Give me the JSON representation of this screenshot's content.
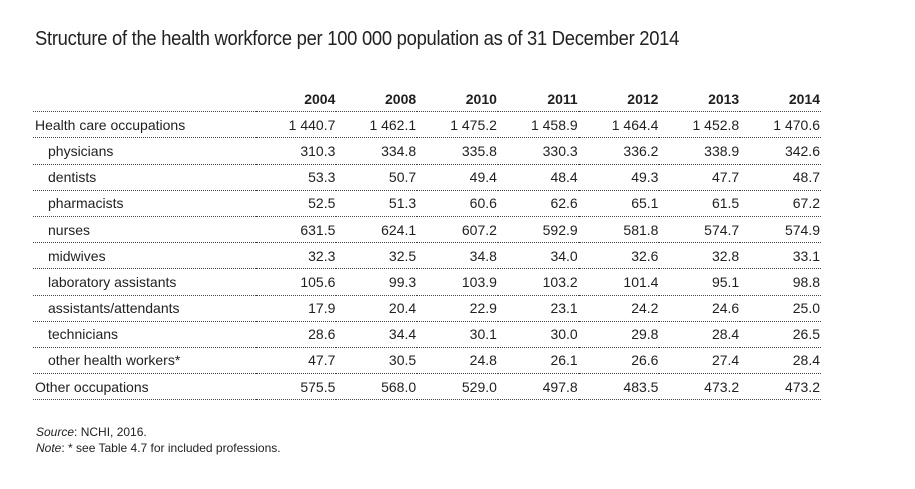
{
  "title": "Structure of the health workforce per 100 000 population as of 31 December 2014",
  "table": {
    "columns": [
      "2004",
      "2008",
      "2010",
      "2011",
      "2012",
      "2013",
      "2014"
    ],
    "rows": [
      {
        "label": "Health care occupations",
        "indent": false,
        "values": [
          "1 440.7",
          "1 462.1",
          "1 475.2",
          "1 458.9",
          "1 464.4",
          "1 452.8",
          "1 470.6"
        ]
      },
      {
        "label": "physicians",
        "indent": true,
        "values": [
          "310.3",
          "334.8",
          "335.8",
          "330.3",
          "336.2",
          "338.9",
          "342.6"
        ]
      },
      {
        "label": "dentists",
        "indent": true,
        "values": [
          "53.3",
          "50.7",
          "49.4",
          "48.4",
          "49.3",
          "47.7",
          "48.7"
        ]
      },
      {
        "label": "pharmacists",
        "indent": true,
        "values": [
          "52.5",
          "51.3",
          "60.6",
          "62.6",
          "65.1",
          "61.5",
          "67.2"
        ]
      },
      {
        "label": "nurses",
        "indent": true,
        "values": [
          "631.5",
          "624.1",
          "607.2",
          "592.9",
          "581.8",
          "574.7",
          "574.9"
        ]
      },
      {
        "label": "midwives",
        "indent": true,
        "values": [
          "32.3",
          "32.5",
          "34.8",
          "34.0",
          "32.6",
          "32.8",
          "33.1"
        ]
      },
      {
        "label": "laboratory assistants",
        "indent": true,
        "values": [
          "105.6",
          "99.3",
          "103.9",
          "103.2",
          "101.4",
          "95.1",
          "98.8"
        ]
      },
      {
        "label": "assistants/attendants",
        "indent": true,
        "values": [
          "17.9",
          "20.4",
          "22.9",
          "23.1",
          "24.2",
          "24.6",
          "25.0"
        ]
      },
      {
        "label": "technicians",
        "indent": true,
        "values": [
          "28.6",
          "34.4",
          "30.1",
          "30.0",
          "29.8",
          "28.4",
          "26.5"
        ]
      },
      {
        "label": "other health workers*",
        "indent": true,
        "values": [
          "47.7",
          "30.5",
          "24.8",
          "26.1",
          "26.6",
          "27.4",
          "28.4"
        ]
      },
      {
        "label": "Other occupations",
        "indent": false,
        "values": [
          "575.5",
          "568.0",
          "529.0",
          "497.8",
          "483.5",
          "473.2",
          "473.2"
        ]
      }
    ]
  },
  "notes": {
    "source_label": "Source",
    "source_text": ": NCHI, 2016.",
    "note_label": "Note",
    "note_text": ": * see Table 4.7 for included professions."
  }
}
